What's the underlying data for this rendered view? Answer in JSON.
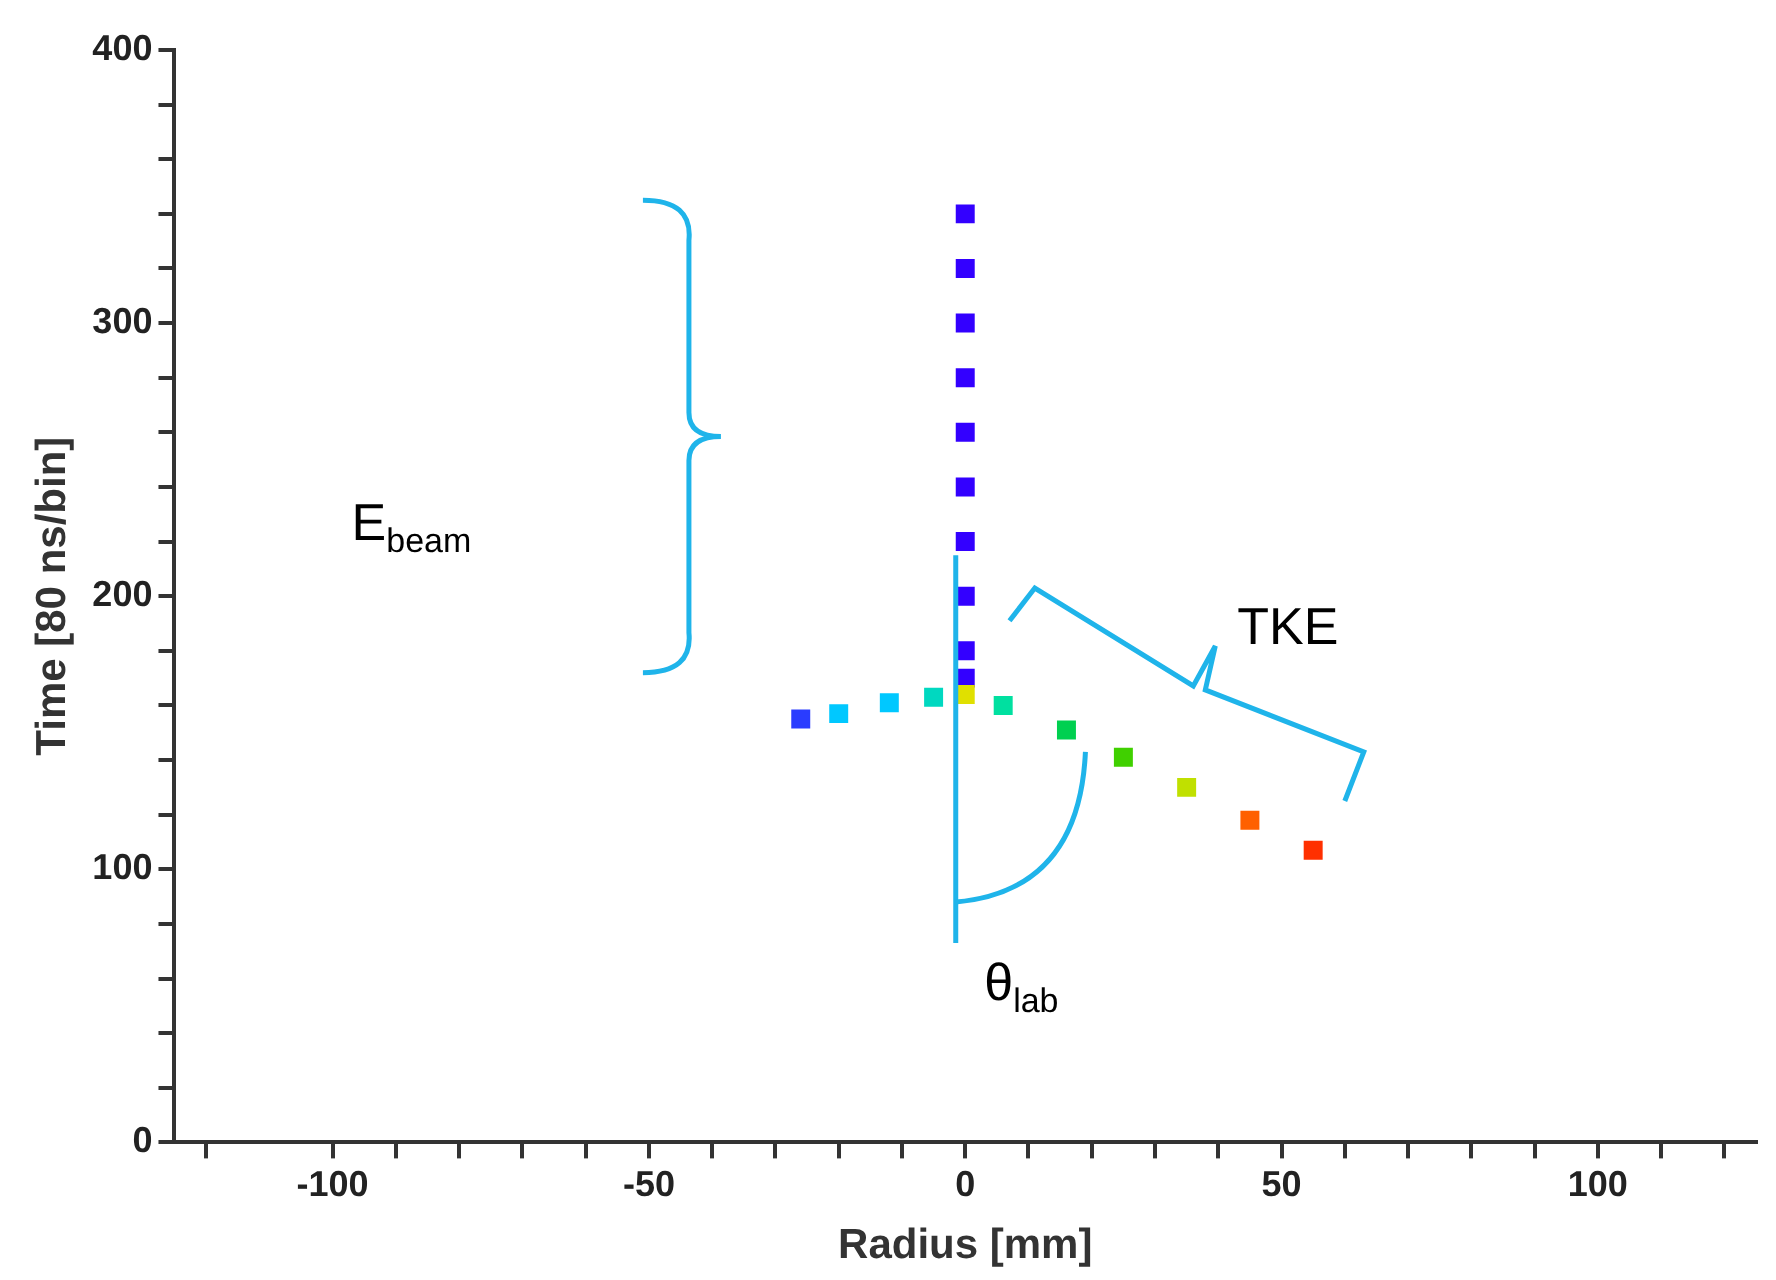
{
  "chart_data": {
    "type": "scatter",
    "xlabel": "Radius [mm]",
    "ylabel": "Time [80 ns/bin]",
    "xlim": [
      -125,
      125
    ],
    "ylim": [
      0,
      400
    ],
    "xticks": [
      {
        "value": -120,
        "label": null
      },
      -100,
      {
        "value": -90,
        "label": null
      },
      {
        "value": -80,
        "label": null
      },
      {
        "value": -70,
        "label": null
      },
      {
        "value": -60,
        "label": null
      },
      -50,
      {
        "value": -40,
        "label": null
      },
      {
        "value": -30,
        "label": null
      },
      {
        "value": -20,
        "label": null
      },
      {
        "value": -10,
        "label": null
      },
      0,
      {
        "value": 10,
        "label": null
      },
      {
        "value": 20,
        "label": null
      },
      {
        "value": 30,
        "label": null
      },
      {
        "value": 40,
        "label": null
      },
      50,
      {
        "value": 60,
        "label": null
      },
      {
        "value": 70,
        "label": null
      },
      {
        "value": 80,
        "label": null
      },
      {
        "value": 90,
        "label": null
      },
      100,
      {
        "value": 110,
        "label": null
      },
      {
        "value": 120,
        "label": null
      }
    ],
    "yticks": [
      0,
      {
        "value": 20,
        "label": null
      },
      {
        "value": 40,
        "label": null
      },
      {
        "value": 60,
        "label": null
      },
      {
        "value": 80,
        "label": null
      },
      100,
      {
        "value": 120,
        "label": null
      },
      {
        "value": 140,
        "label": null
      },
      {
        "value": 160,
        "label": null
      },
      {
        "value": 180,
        "label": null
      },
      200,
      {
        "value": 220,
        "label": null
      },
      {
        "value": 240,
        "label": null
      },
      {
        "value": 260,
        "label": null
      },
      {
        "value": 280,
        "label": null
      },
      300,
      {
        "value": 320,
        "label": null
      },
      {
        "value": 340,
        "label": null
      },
      {
        "value": 360,
        "label": null
      },
      {
        "value": 380,
        "label": null
      },
      400
    ],
    "grid": false,
    "legend": false,
    "marker": "square",
    "x": [
      0,
      0,
      0,
      0,
      0,
      0,
      0,
      0,
      0,
      0,
      -26,
      -20,
      -12,
      -5,
      0,
      6,
      16,
      25,
      35,
      45,
      55
    ],
    "values": [
      340,
      320,
      300,
      280,
      260,
      240,
      220,
      200,
      180,
      170,
      155,
      157,
      161,
      163,
      164,
      160,
      151,
      141,
      130,
      118,
      107
    ],
    "colors": [
      "#3300ff",
      "#3300ff",
      "#3300ff",
      "#3300ff",
      "#3300ff",
      "#3300ff",
      "#3300ff",
      "#3300ff",
      "#3300ff",
      "#3300ff",
      "#2a3cff",
      "#00c8ff",
      "#00c8ff",
      "#00d8c0",
      "#e0e000",
      "#00e0a0",
      "#00d050",
      "#40d000",
      "#c0e000",
      "#ff6000",
      "#ff3000"
    ],
    "annotations": [
      "E$_{beam}$",
      "TKE",
      {
        "text": "θ$_{lab}$",
        "x": -1.5,
        "y": 215
      }
    ]
  }
}
